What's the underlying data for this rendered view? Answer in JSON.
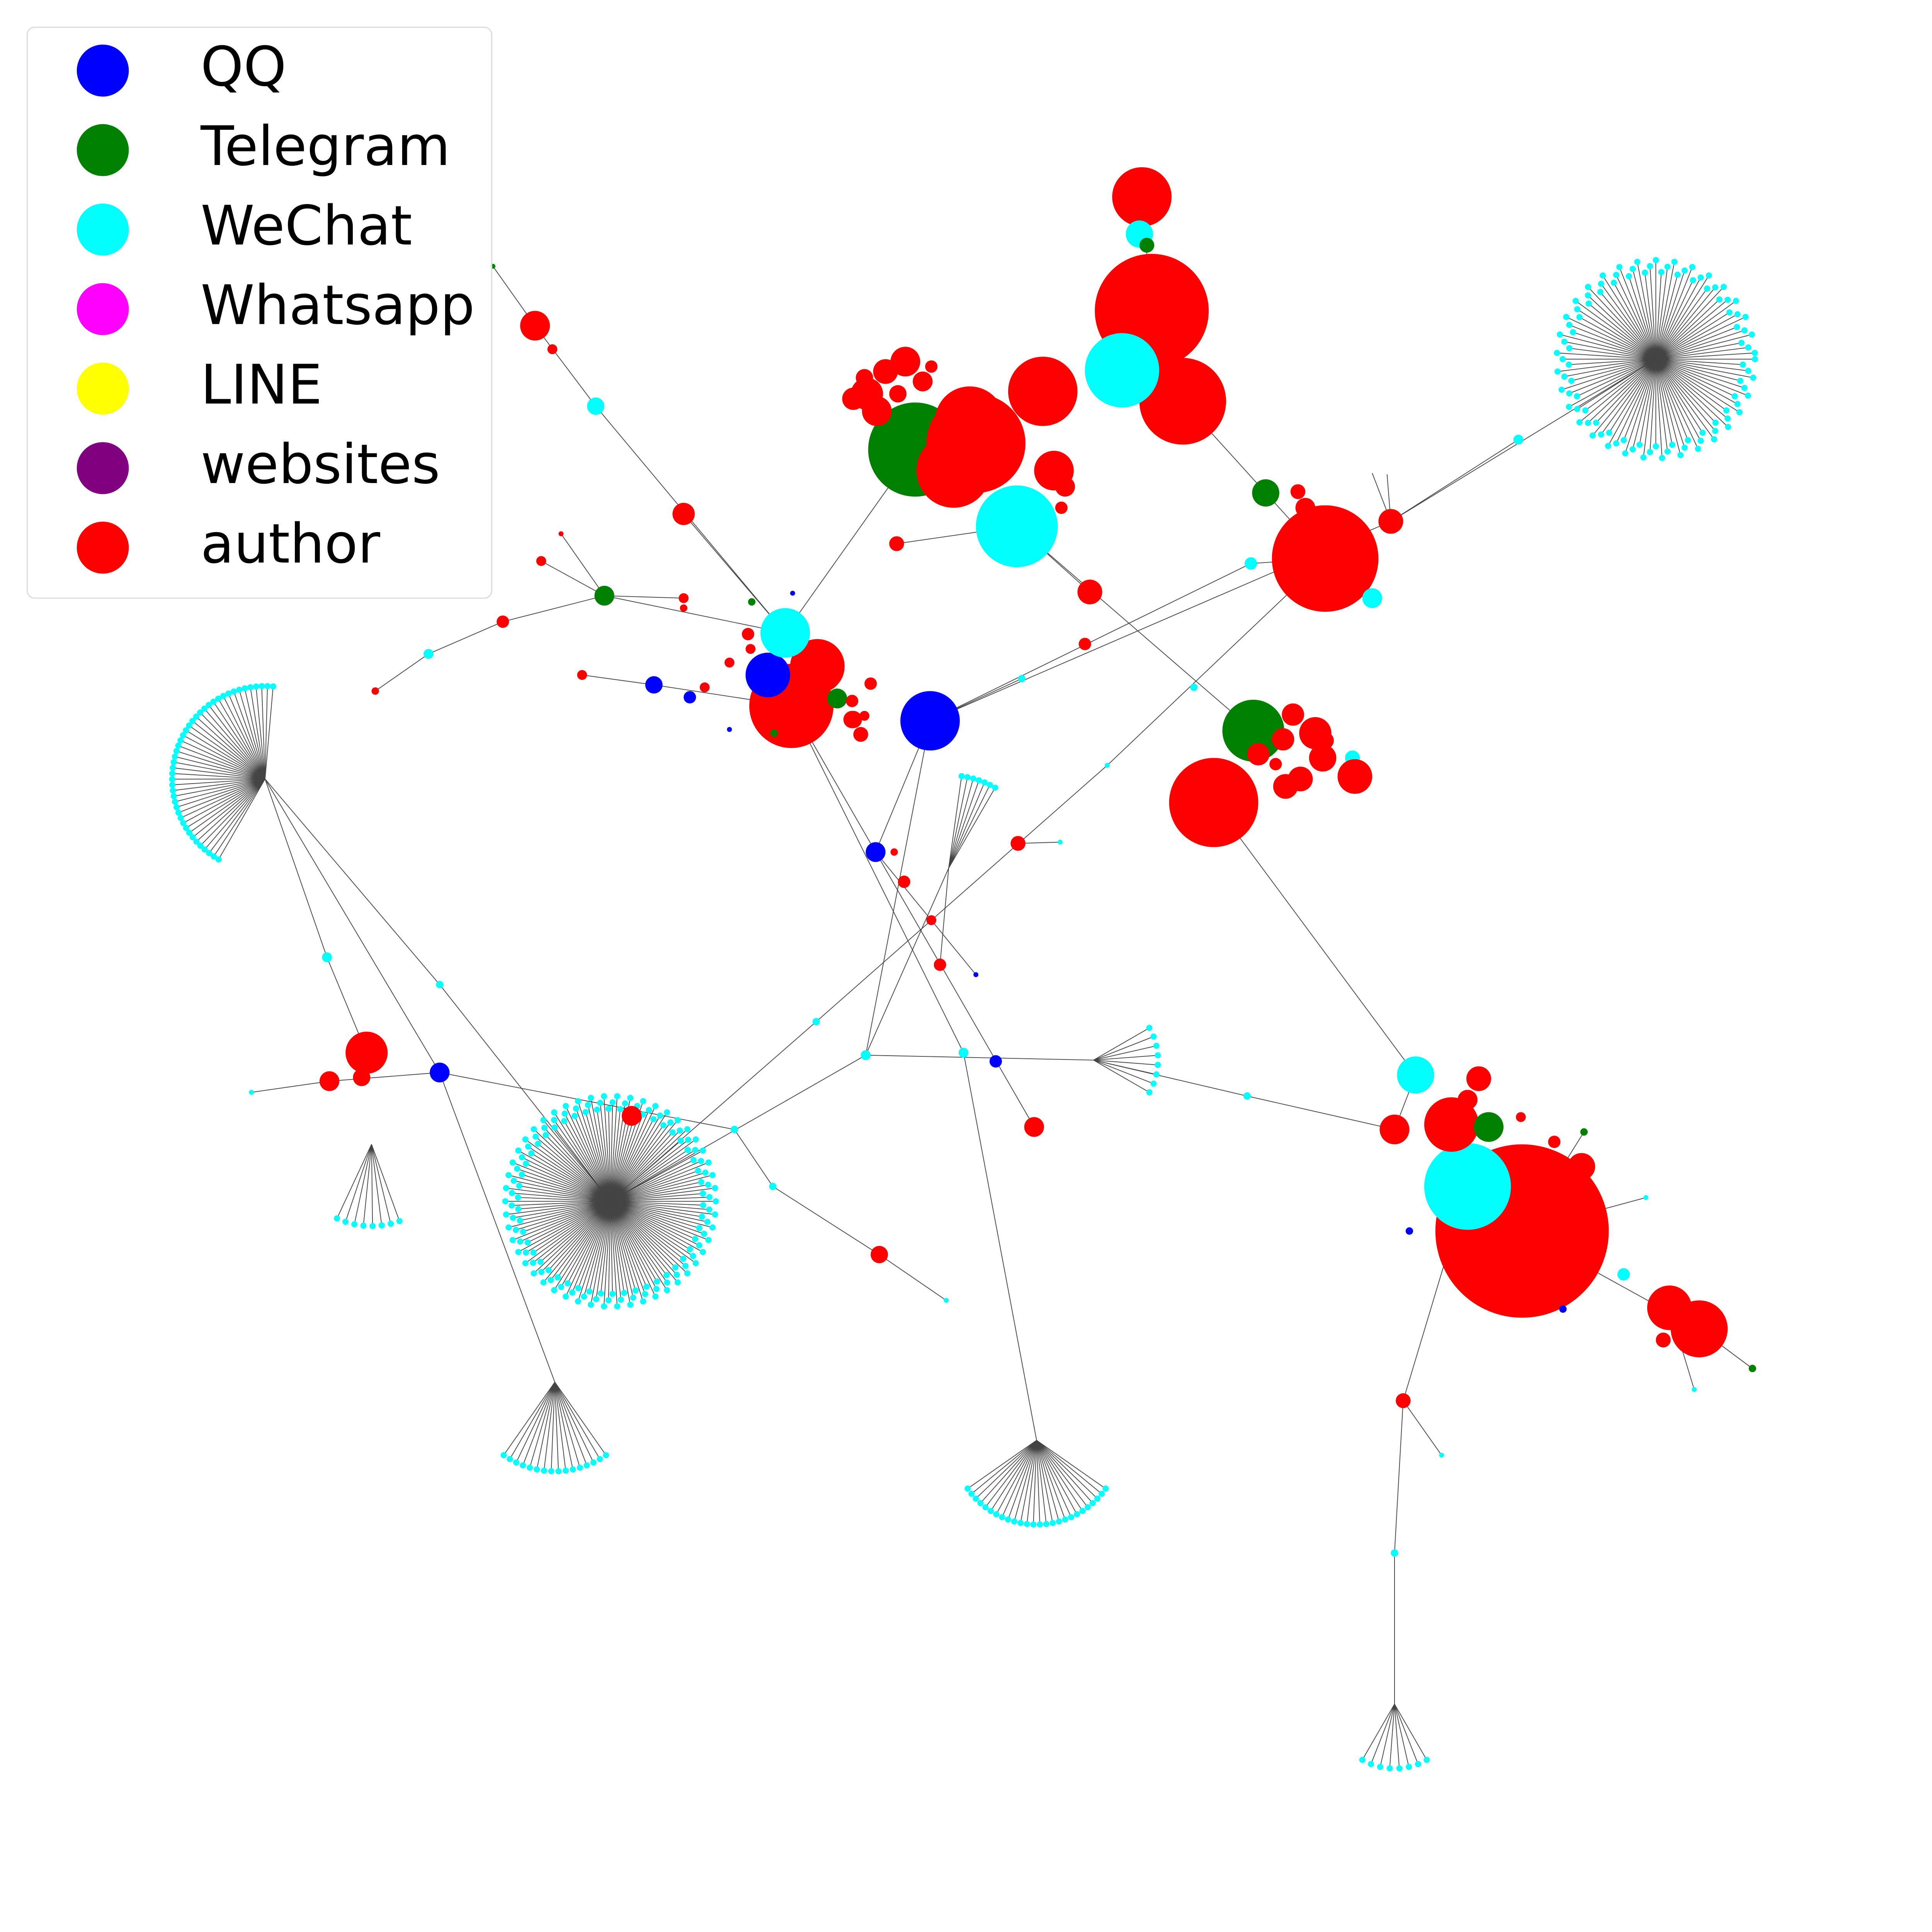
{
  "legend": {
    "items": [
      {
        "label": "QQ",
        "color": "#0000ff"
      },
      {
        "label": "Telegram",
        "color": "#008000"
      },
      {
        "label": "WeChat",
        "color": "#00ffff"
      },
      {
        "label": "Whatsapp",
        "color": "#ff00ff"
      },
      {
        "label": "LINE",
        "color": "#ffff00"
      },
      {
        "label": "websites",
        "color": "#800080"
      },
      {
        "label": "author",
        "color": "#ff0000"
      }
    ]
  }
}
